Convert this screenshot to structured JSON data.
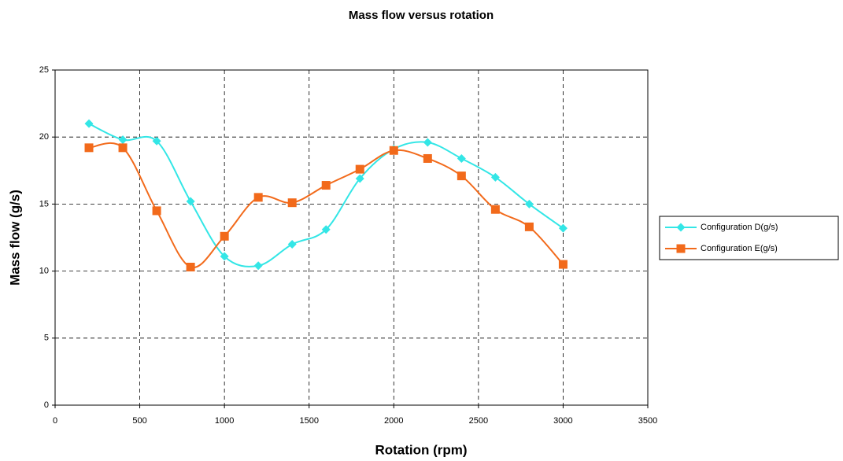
{
  "chart_data": {
    "type": "line",
    "title": "Mass flow versus rotation",
    "xlabel": "Rotation (rpm)",
    "ylabel": "Mass flow (g/s)",
    "x": [
      200,
      400,
      600,
      800,
      1000,
      1200,
      1400,
      1600,
      1800,
      2000,
      2200,
      2400,
      2600,
      2800,
      3000
    ],
    "series": [
      {
        "name": "Configuration D(g/s)",
        "color": "#33e6e6",
        "marker": "diamond",
        "values": [
          21.0,
          19.8,
          19.7,
          15.2,
          11.1,
          10.4,
          12.0,
          13.1,
          16.9,
          19.1,
          19.6,
          18.4,
          17.0,
          15.0,
          13.2
        ]
      },
      {
        "name": "Configuration E(g/s)",
        "color": "#f26a1b",
        "marker": "square",
        "values": [
          19.2,
          19.2,
          14.5,
          10.3,
          12.6,
          15.5,
          15.1,
          16.4,
          17.6,
          19.0,
          18.4,
          17.1,
          14.6,
          13.3,
          10.5
        ]
      }
    ],
    "xlim": [
      0,
      3500
    ],
    "xticks": [
      0,
      500,
      1000,
      1500,
      2000,
      2500,
      3000,
      3500
    ],
    "ylim": [
      0,
      25
    ],
    "yticks": [
      0,
      5,
      10,
      15,
      20,
      25
    ],
    "grid": true,
    "smooth": true,
    "legend": "right"
  }
}
